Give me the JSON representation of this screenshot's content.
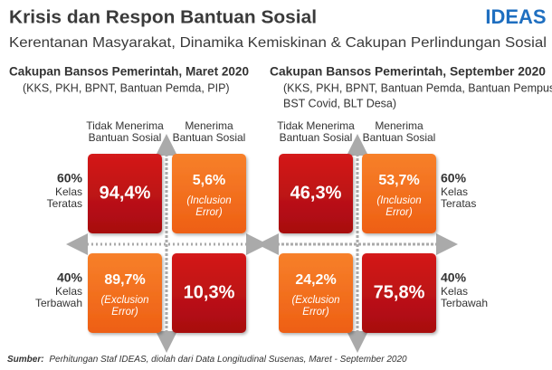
{
  "header": {
    "title": "Krisis dan Respon Bantuan Sosial",
    "subtitle": "Kerentanan Masyarakat, Dinamika Kemiskinan & Cakupan Perlindungan Sosial",
    "logo": "IDEAS"
  },
  "panels": [
    {
      "title": "Cakupan Bansos Pemerintah, Maret 2020",
      "subtitle_lines": [
        "(KKS, PKH, BPNT, Bantuan Pemda, PIP)"
      ],
      "column_labels": [
        [
          "Tidak Menerima",
          "Bantuan Sosial"
        ],
        [
          "Menerima",
          "Bantuan Sosial"
        ]
      ],
      "row_labels": [
        {
          "pct": "60%",
          "lines": [
            "Kelas",
            "Teratas"
          ]
        },
        {
          "pct": "40%",
          "lines": [
            "Kelas",
            "Terbawah"
          ]
        }
      ],
      "cells": [
        [
          {
            "value": "94,4%"
          },
          {
            "value": "5,6%",
            "note": [
              "(Inclusion",
              "Error)"
            ]
          }
        ],
        [
          {
            "value": "89,7%",
            "note": [
              "(Exclusion",
              "Error)"
            ]
          },
          {
            "value": "10,3%"
          }
        ]
      ]
    },
    {
      "title": "Cakupan Bansos Pemerintah, September 2020",
      "subtitle_lines": [
        "(KKS, PKH, BPNT, Bantuan Pemda, Bantuan Pempus,",
        "BST Covid, BLT Desa)"
      ],
      "column_labels": [
        [
          "Tidak Menerima",
          "Bantuan Sosial"
        ],
        [
          "Menerima",
          "Bantuan Sosial"
        ]
      ],
      "row_labels": [
        {
          "pct": "60%",
          "lines": [
            "Kelas",
            "Teratas"
          ]
        },
        {
          "pct": "40%",
          "lines": [
            "Kelas",
            "Terbawah"
          ]
        }
      ],
      "cells": [
        [
          {
            "value": "46,3%"
          },
          {
            "value": "53,7%",
            "note": [
              "(Inclusion",
              "Error)"
            ]
          }
        ],
        [
          {
            "value": "24,2%",
            "note": [
              "(Exclusion",
              "Error)"
            ]
          },
          {
            "value": "75,8%"
          }
        ]
      ]
    }
  ],
  "source": {
    "label": "Sumber:",
    "text": "Perhitungan Staf IDEAS, diolah dari Data Longitudinal Susenas, Maret - September 2020"
  }
}
